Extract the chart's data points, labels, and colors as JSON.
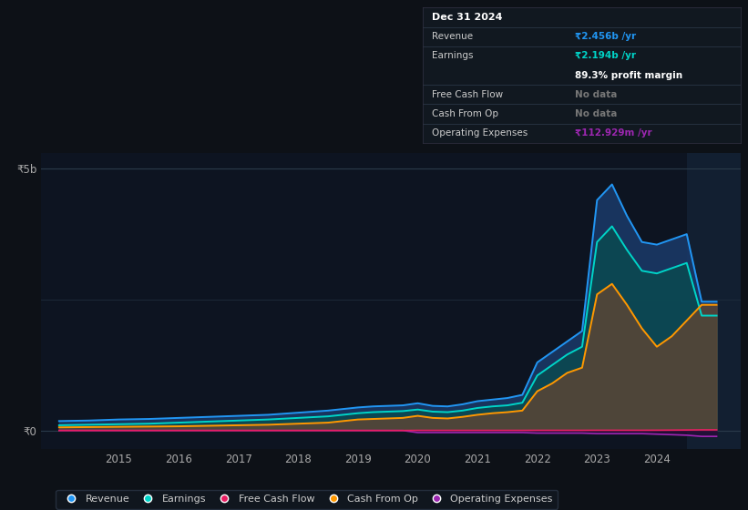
{
  "bg_color": "#0d1117",
  "chart_bg": "#0d1421",
  "y_label": "₹5b",
  "y_zero_label": "₹0",
  "x_ticks": [
    2015,
    2016,
    2017,
    2018,
    2019,
    2020,
    2021,
    2022,
    2023,
    2024
  ],
  "xlim": [
    2013.7,
    2025.4
  ],
  "ylim": [
    -0.35,
    5.3
  ],
  "years": [
    2014.0,
    2014.5,
    2015.0,
    2015.5,
    2016.0,
    2016.5,
    2017.0,
    2017.5,
    2018.0,
    2018.5,
    2019.0,
    2019.25,
    2019.5,
    2019.75,
    2020.0,
    2020.25,
    2020.5,
    2020.75,
    2021.0,
    2021.25,
    2021.5,
    2021.75,
    2022.0,
    2022.25,
    2022.5,
    2022.75,
    2023.0,
    2023.25,
    2023.5,
    2023.75,
    2024.0,
    2024.25,
    2024.5,
    2024.75,
    2025.0
  ],
  "revenue": [
    0.18,
    0.19,
    0.21,
    0.22,
    0.24,
    0.26,
    0.28,
    0.3,
    0.34,
    0.38,
    0.44,
    0.46,
    0.47,
    0.48,
    0.52,
    0.47,
    0.46,
    0.5,
    0.56,
    0.59,
    0.62,
    0.68,
    1.3,
    1.5,
    1.7,
    1.9,
    4.4,
    4.7,
    4.1,
    3.6,
    3.55,
    3.65,
    3.75,
    2.46,
    2.46
  ],
  "earnings": [
    0.1,
    0.11,
    0.12,
    0.13,
    0.15,
    0.17,
    0.19,
    0.21,
    0.24,
    0.27,
    0.33,
    0.35,
    0.36,
    0.37,
    0.4,
    0.36,
    0.35,
    0.38,
    0.43,
    0.46,
    0.48,
    0.53,
    1.05,
    1.25,
    1.45,
    1.6,
    3.6,
    3.9,
    3.45,
    3.05,
    3.0,
    3.1,
    3.2,
    2.194,
    2.194
  ],
  "cash_from_op": [
    0.06,
    0.065,
    0.07,
    0.075,
    0.08,
    0.09,
    0.1,
    0.11,
    0.13,
    0.15,
    0.21,
    0.22,
    0.23,
    0.24,
    0.28,
    0.24,
    0.23,
    0.26,
    0.3,
    0.33,
    0.35,
    0.38,
    0.75,
    0.9,
    1.1,
    1.2,
    2.6,
    2.8,
    2.4,
    1.95,
    1.6,
    1.8,
    2.1,
    2.4,
    2.4
  ],
  "op_expenses": [
    0.0,
    0.0,
    0.0,
    0.0,
    0.0,
    0.0,
    0.0,
    0.0,
    0.0,
    0.0,
    0.0,
    0.0,
    0.0,
    0.0,
    -0.04,
    -0.04,
    -0.04,
    -0.04,
    -0.04,
    -0.04,
    -0.04,
    -0.04,
    -0.05,
    -0.05,
    -0.05,
    -0.05,
    -0.06,
    -0.06,
    -0.06,
    -0.06,
    -0.07,
    -0.08,
    -0.09,
    -0.113,
    -0.113
  ],
  "free_cash_flow": [
    0.0,
    0.0,
    0.0,
    0.0,
    0.0,
    0.0,
    0.0,
    0.0,
    0.0,
    0.0,
    0.0,
    0.0,
    0.0,
    0.0,
    0.002,
    0.002,
    0.002,
    0.002,
    0.002,
    0.002,
    0.002,
    0.002,
    0.003,
    0.003,
    0.003,
    0.003,
    0.004,
    0.004,
    0.004,
    0.004,
    0.005,
    0.007,
    0.009,
    0.012,
    0.012
  ],
  "revenue_color": "#2196f3",
  "earnings_color": "#00d4c8",
  "cash_from_op_color": "#ff9800",
  "op_expenses_color": "#9c27b0",
  "free_cash_flow_color": "#e91e63",
  "revenue_fill": "#1a3a6a",
  "earnings_fill": "#0a4a50",
  "cash_from_op_fill": "#5d4037",
  "info_box": {
    "date": "Dec 31 2024",
    "revenue_label": "Revenue",
    "revenue_val": "₹2.456b /yr",
    "revenue_color": "#2196f3",
    "earnings_label": "Earnings",
    "earnings_val": "₹2.194b /yr",
    "earnings_color": "#00d4c8",
    "profit_margin": "89.3% profit margin",
    "free_cash_flow_label": "Free Cash Flow",
    "free_cash_flow_val": "No data",
    "cash_from_op_label": "Cash From Op",
    "cash_from_op_val": "No data",
    "op_expenses_label": "Operating Expenses",
    "op_expenses_val": "₹112.929m /yr",
    "op_expenses_color": "#9c27b0"
  },
  "legend": [
    {
      "label": "Revenue",
      "color": "#2196f3"
    },
    {
      "label": "Earnings",
      "color": "#00d4c8"
    },
    {
      "label": "Free Cash Flow",
      "color": "#e91e63"
    },
    {
      "label": "Cash From Op",
      "color": "#ff9800"
    },
    {
      "label": "Operating Expenses",
      "color": "#9c27b0"
    }
  ],
  "shade_start": 2024.5,
  "shade_color": "#1a2d45"
}
